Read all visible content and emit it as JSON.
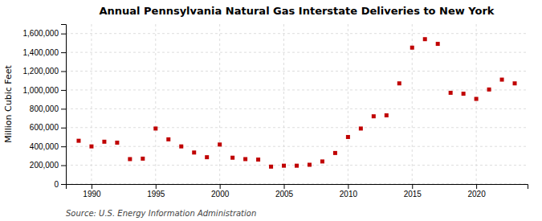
{
  "chart_data": {
    "type": "scatter",
    "title": "Annual Pennsylvania Natural Gas Interstate Deliveries to New York",
    "ylabel": "Million Cubic Feet",
    "source": "Source: U.S. Energy Information Administration",
    "x": [
      1989,
      1990,
      1991,
      1992,
      1993,
      1994,
      1995,
      1996,
      1997,
      1998,
      1999,
      2000,
      2001,
      2002,
      2003,
      2004,
      2005,
      2006,
      2007,
      2008,
      2009,
      2010,
      2011,
      2012,
      2013,
      2014,
      2015,
      2016,
      2017,
      2018,
      2019,
      2020,
      2021,
      2022,
      2023
    ],
    "values": [
      460000,
      400000,
      450000,
      440000,
      265000,
      270000,
      590000,
      475000,
      400000,
      335000,
      285000,
      420000,
      280000,
      265000,
      260000,
      185000,
      195000,
      195000,
      205000,
      240000,
      330000,
      500000,
      590000,
      720000,
      730000,
      1070000,
      1450000,
      1540000,
      1490000,
      970000,
      960000,
      905000,
      1005000,
      1110000,
      1070000
    ],
    "color": "#c00000",
    "marker": "square",
    "xlim": [
      1988,
      2024
    ],
    "xticks": [
      1990,
      1995,
      2000,
      2005,
      2010,
      2015,
      2020
    ],
    "ylim": [
      0,
      1700000
    ],
    "yticks": [
      0,
      {
        "value": 200000,
        "label": "200,000"
      },
      {
        "value": 400000,
        "label": "400,000"
      },
      {
        "value": 600000,
        "label": "600,000"
      },
      {
        "value": 800000,
        "label": "800,000"
      },
      {
        "value": 1000000,
        "label": "1,000,000"
      },
      {
        "value": 1200000,
        "label": "1,200,000"
      },
      {
        "value": 1400000,
        "label": "1,400,000"
      },
      {
        "value": 1600000,
        "label": "1,600,000"
      }
    ],
    "grid": true
  }
}
